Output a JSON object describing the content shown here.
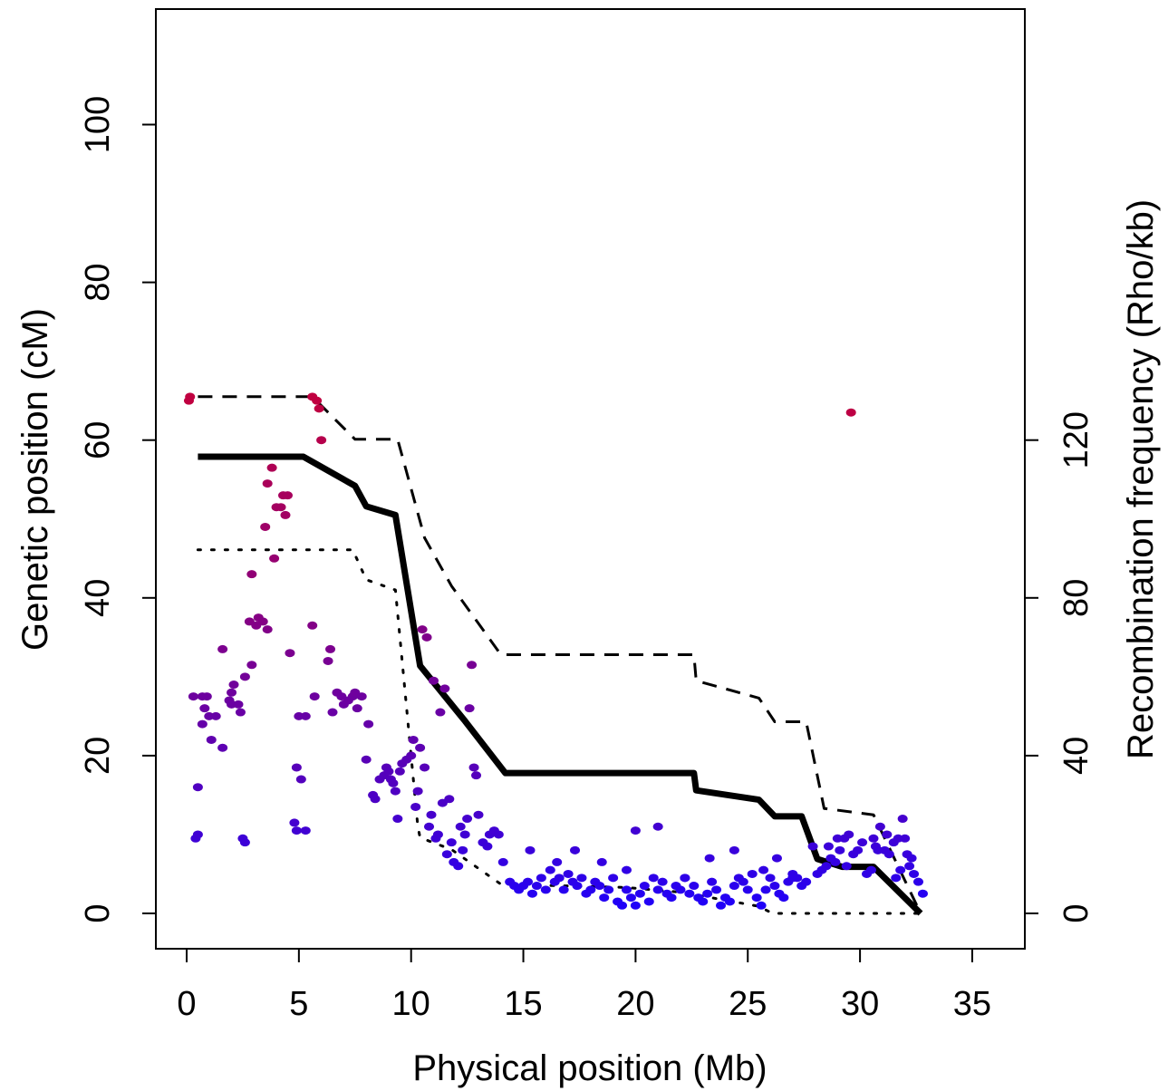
{
  "chart_data": {
    "type": "scatter",
    "title": "",
    "xlabel": "Physical position (Mb)",
    "ylabel": "Genetic position (cM)",
    "y2label": "Recombination frequency (Rho/kb)",
    "xlim": [
      0,
      35
    ],
    "ylim": [
      0,
      110
    ],
    "y2lim": [
      0,
      150
    ],
    "x_ticks": [
      0,
      5,
      10,
      15,
      20,
      25,
      30,
      35
    ],
    "y_ticks": [
      0,
      20,
      40,
      60,
      80,
      100
    ],
    "y2_ticks": [
      0,
      40,
      80,
      120
    ],
    "grid": false,
    "legend": "none",
    "point_color_scale": {
      "low": "#1a00ff",
      "high": "#c00040"
    },
    "series": [
      {
        "role": "genetic_map_mean",
        "axis": "left",
        "style": "solid",
        "color": "#000000",
        "x": [
          0.5,
          5.2,
          7.5,
          8.0,
          9.3,
          10.4,
          12.4,
          14.2,
          22.6,
          22.7,
          25.5,
          26.2,
          27.4,
          28.1,
          29.2,
          30.6,
          32.7
        ],
        "y": [
          57.9,
          57.9,
          54.2,
          51.6,
          50.5,
          31.4,
          24.4,
          17.8,
          17.8,
          15.6,
          14.4,
          12.3,
          12.3,
          6.9,
          5.9,
          5.9,
          0.0
        ]
      },
      {
        "role": "genetic_map_upper",
        "axis": "left",
        "style": "dashed",
        "color": "#000000",
        "x": [
          0.5,
          5.6,
          7.5,
          9.4,
          10.6,
          11.8,
          14.0,
          22.6,
          22.7,
          25.5,
          26.2,
          27.6,
          28.4,
          30.6,
          32.7
        ],
        "y": [
          65.5,
          65.5,
          60.1,
          60.1,
          47.6,
          41.5,
          32.8,
          32.8,
          29.5,
          27.3,
          24.3,
          24.3,
          13.3,
          12.5,
          0.0
        ]
      },
      {
        "role": "genetic_map_lower",
        "axis": "left",
        "style": "dotted",
        "color": "#000000",
        "x": [
          0.5,
          7.4,
          8.0,
          9.3,
          10.3,
          10.4,
          11.8,
          14.0,
          19.5,
          22.0,
          25.5,
          26.1,
          32.7
        ],
        "y": [
          46.1,
          46.1,
          42.3,
          41.0,
          11.0,
          9.6,
          8.1,
          3.7,
          3.3,
          2.7,
          0.9,
          0.0,
          0.0
        ]
      },
      {
        "role": "recombination_frequency",
        "axis": "right",
        "style": "points",
        "points": [
          [
            0.1,
            130
          ],
          [
            0.15,
            131
          ],
          [
            5.6,
            131
          ],
          [
            5.8,
            130
          ],
          [
            5.9,
            128
          ],
          [
            6.0,
            120
          ],
          [
            29.6,
            127
          ],
          [
            3.8,
            113
          ],
          [
            4.3,
            106
          ],
          [
            4.5,
            106
          ],
          [
            3.6,
            109
          ],
          [
            4.0,
            103
          ],
          [
            4.2,
            103
          ],
          [
            4.4,
            101
          ],
          [
            3.9,
            90
          ],
          [
            3.5,
            98
          ],
          [
            2.9,
            86
          ],
          [
            2.8,
            74
          ],
          [
            3.2,
            75
          ],
          [
            3.4,
            74
          ],
          [
            3.6,
            72
          ],
          [
            3.1,
            73
          ],
          [
            2.6,
            60
          ],
          [
            2.9,
            63
          ],
          [
            1.6,
            67
          ],
          [
            4.6,
            66
          ],
          [
            5.6,
            73
          ],
          [
            6.4,
            67
          ],
          [
            6.3,
            64
          ],
          [
            0.3,
            55
          ],
          [
            0.7,
            55
          ],
          [
            0.9,
            55
          ],
          [
            0.8,
            52
          ],
          [
            1.0,
            50
          ],
          [
            1.3,
            50
          ],
          [
            1.1,
            44
          ],
          [
            1.6,
            42
          ],
          [
            1.9,
            54
          ],
          [
            2.0,
            53
          ],
          [
            2.3,
            53
          ],
          [
            2.4,
            51
          ],
          [
            2.1,
            58
          ],
          [
            2.0,
            56
          ],
          [
            0.7,
            48
          ],
          [
            0.5,
            32
          ],
          [
            0.4,
            19
          ],
          [
            0.5,
            20
          ],
          [
            2.5,
            19
          ],
          [
            2.6,
            18
          ],
          [
            5.0,
            50
          ],
          [
            5.3,
            50
          ],
          [
            5.7,
            55
          ],
          [
            4.9,
            37
          ],
          [
            5.1,
            34
          ],
          [
            4.8,
            23
          ],
          [
            4.9,
            21
          ],
          [
            5.3,
            21
          ],
          [
            6.5,
            51
          ],
          [
            6.7,
            56
          ],
          [
            6.9,
            55
          ],
          [
            7.0,
            53
          ],
          [
            7.2,
            54
          ],
          [
            7.4,
            55
          ],
          [
            7.6,
            52
          ],
          [
            7.5,
            56
          ],
          [
            7.8,
            55
          ],
          [
            8.1,
            48
          ],
          [
            8.0,
            39
          ],
          [
            8.3,
            30
          ],
          [
            8.4,
            29
          ],
          [
            8.6,
            34
          ],
          [
            8.8,
            35
          ],
          [
            8.9,
            37
          ],
          [
            9.0,
            36
          ],
          [
            9.1,
            34
          ],
          [
            9.2,
            33
          ],
          [
            9.3,
            31
          ],
          [
            9.4,
            24
          ],
          [
            9.5,
            36
          ],
          [
            9.6,
            38
          ],
          [
            9.8,
            39
          ],
          [
            10.0,
            40
          ],
          [
            10.1,
            44
          ],
          [
            10.3,
            31
          ],
          [
            10.4,
            42
          ],
          [
            10.5,
            72
          ],
          [
            10.7,
            70
          ],
          [
            10.6,
            37
          ],
          [
            10.9,
            25
          ],
          [
            11.2,
            20
          ],
          [
            11.0,
            59
          ],
          [
            11.3,
            51
          ],
          [
            11.5,
            57
          ],
          [
            11.7,
            29
          ],
          [
            11.9,
            13
          ],
          [
            12.1,
            12
          ],
          [
            12.3,
            16
          ],
          [
            12.4,
            20
          ],
          [
            12.6,
            52
          ],
          [
            12.7,
            63
          ],
          [
            12.8,
            37
          ],
          [
            12.9,
            35
          ],
          [
            13.0,
            25
          ],
          [
            13.2,
            18
          ],
          [
            13.4,
            17
          ],
          [
            13.5,
            20
          ],
          [
            13.7,
            21
          ],
          [
            13.9,
            20
          ],
          [
            14.1,
            13
          ],
          [
            10.2,
            27
          ],
          [
            10.8,
            22
          ],
          [
            11.1,
            19
          ],
          [
            11.4,
            28
          ],
          [
            11.6,
            15
          ],
          [
            11.8,
            18
          ],
          [
            12.2,
            22
          ],
          [
            12.5,
            24
          ],
          [
            14.4,
            8
          ],
          [
            14.6,
            7
          ],
          [
            14.8,
            6
          ],
          [
            15.0,
            7
          ],
          [
            15.2,
            8
          ],
          [
            15.4,
            5
          ],
          [
            15.6,
            7
          ],
          [
            15.8,
            9
          ],
          [
            16.0,
            6
          ],
          [
            16.2,
            11
          ],
          [
            16.4,
            8
          ],
          [
            16.6,
            9
          ],
          [
            16.8,
            6
          ],
          [
            17.0,
            10
          ],
          [
            17.2,
            8
          ],
          [
            17.4,
            7
          ],
          [
            17.6,
            9
          ],
          [
            17.8,
            5
          ],
          [
            18.0,
            6
          ],
          [
            18.2,
            8
          ],
          [
            18.4,
            7
          ],
          [
            18.6,
            4
          ],
          [
            18.8,
            6
          ],
          [
            19.0,
            9
          ],
          [
            19.2,
            3
          ],
          [
            19.4,
            2
          ],
          [
            19.6,
            6
          ],
          [
            19.8,
            4
          ],
          [
            20.0,
            2
          ],
          [
            20.2,
            5
          ],
          [
            20.4,
            7
          ],
          [
            20.6,
            3
          ],
          [
            20.8,
            9
          ],
          [
            21.0,
            6
          ],
          [
            21.2,
            8
          ],
          [
            21.4,
            5
          ],
          [
            21.6,
            4
          ],
          [
            21.8,
            7
          ],
          [
            22.0,
            6
          ],
          [
            22.2,
            9
          ],
          [
            22.4,
            5
          ],
          [
            22.6,
            7
          ],
          [
            22.8,
            4
          ],
          [
            23.0,
            3
          ],
          [
            23.2,
            5
          ],
          [
            23.4,
            8
          ],
          [
            23.6,
            6
          ],
          [
            23.8,
            2
          ],
          [
            24.0,
            4
          ],
          [
            24.2,
            3
          ],
          [
            24.4,
            7
          ],
          [
            24.6,
            9
          ],
          [
            24.8,
            8
          ],
          [
            25.0,
            6
          ],
          [
            25.2,
            10
          ],
          [
            25.4,
            4
          ],
          [
            25.6,
            2
          ],
          [
            25.8,
            6
          ],
          [
            26.0,
            9
          ],
          [
            26.2,
            7
          ],
          [
            26.4,
            5
          ],
          [
            26.6,
            4
          ],
          [
            26.8,
            8
          ],
          [
            27.0,
            10
          ],
          [
            27.2,
            9
          ],
          [
            27.4,
            7
          ],
          [
            15.3,
            16
          ],
          [
            16.5,
            13
          ],
          [
            17.3,
            16
          ],
          [
            18.5,
            13
          ],
          [
            19.6,
            11
          ],
          [
            20.0,
            21
          ],
          [
            21.0,
            22
          ],
          [
            22.2,
            9
          ],
          [
            23.3,
            14
          ],
          [
            24.4,
            16
          ],
          [
            25.7,
            11
          ],
          [
            26.3,
            14
          ],
          [
            27.0,
            9
          ],
          [
            27.6,
            8
          ],
          [
            27.9,
            17
          ],
          [
            28.1,
            10
          ],
          [
            28.3,
            11
          ],
          [
            28.5,
            12
          ],
          [
            28.7,
            14
          ],
          [
            28.9,
            13
          ],
          [
            29.1,
            16
          ],
          [
            29.3,
            19
          ],
          [
            29.5,
            20
          ],
          [
            29.7,
            15
          ],
          [
            29.9,
            16
          ],
          [
            30.1,
            18
          ],
          [
            30.3,
            10
          ],
          [
            30.5,
            11
          ],
          [
            30.7,
            17
          ],
          [
            30.9,
            22
          ],
          [
            31.1,
            16
          ],
          [
            31.3,
            15
          ],
          [
            31.5,
            18
          ],
          [
            31.7,
            19
          ],
          [
            31.9,
            24
          ],
          [
            32.1,
            15
          ],
          [
            32.2,
            12
          ],
          [
            32.3,
            14
          ],
          [
            32.4,
            10
          ],
          [
            32.6,
            8
          ],
          [
            32.8,
            5
          ],
          [
            31.2,
            20
          ],
          [
            30.6,
            19
          ],
          [
            29.0,
            19
          ],
          [
            29.4,
            12
          ],
          [
            31.8,
            11
          ],
          [
            32.0,
            19
          ],
          [
            31.6,
            9
          ],
          [
            30.8,
            16
          ],
          [
            28.6,
            17
          ]
        ]
      }
    ]
  }
}
